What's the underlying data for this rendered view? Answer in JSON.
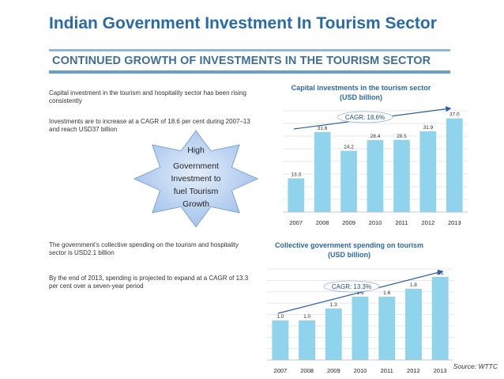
{
  "header": {
    "title": "Indian Government Investment In Tourism Sector",
    "subtitle": "CONTINUED GROWTH OF INVESTMENTS IN THE TOURISM SECTOR"
  },
  "left": {
    "p1": "Capital investment in the tourism and hospitality sector has been rising consistently",
    "p2": "Investments are to increase at a CAGR of 18.6 per cent during 2007–13 and reach USD37 billion",
    "p3": "The government’s collective spending on the tourism and hospitality sector is USD2.1 billion",
    "p4": "By the end of 2013, spending is projected to expand at a CAGR of 13.3 per cent over a seven-year period"
  },
  "callout": {
    "lines": [
      "High",
      "Government",
      "Investment to",
      "fuel Tourism",
      "Growth"
    ]
  },
  "source": "Source: WTTC",
  "colors": {
    "bar": "#8fd3ec",
    "title": "#2a6aa8",
    "arrow": "#2b5fa0",
    "callout_fill": "#a9c6ec"
  },
  "chart_data": [
    {
      "type": "bar",
      "title": "Capital investments in the tourism sector",
      "subtitle": "(USD billion)",
      "categories": [
        "2007",
        "2008",
        "2009",
        "2010",
        "2011",
        "2012",
        "2013"
      ],
      "values": [
        13.3,
        31.6,
        24.2,
        28.4,
        28.5,
        31.9,
        37.0
      ],
      "value_labels": [
        "13.3",
        "31.6",
        "24.2",
        "28.4",
        "28.5",
        "31.9",
        "37.0"
      ],
      "annotation": "CAGR: 18.6%",
      "ylim": [
        0,
        40
      ],
      "grid": true,
      "axis_visible": false
    },
    {
      "type": "bar",
      "title": "Collective government spending on tourism",
      "subtitle": "(USD billion)",
      "categories": [
        "2007",
        "2008",
        "2009",
        "2010",
        "2011",
        "2012",
        "2013"
      ],
      "values": [
        1.0,
        1.0,
        1.3,
        1.6,
        1.6,
        1.8,
        2.1
      ],
      "value_labels": [
        "1.0",
        "1.0",
        "1.3",
        "1.6",
        "1.6",
        "1.8",
        "2.1"
      ],
      "annotation": "CAGR: 13.3%",
      "ylim": [
        0,
        2.3
      ],
      "grid": true,
      "axis_visible": false
    }
  ]
}
